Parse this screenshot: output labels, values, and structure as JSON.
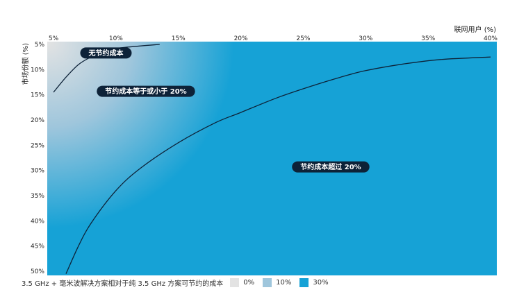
{
  "chart_data": {
    "type": "heatmap",
    "title": "",
    "xlabel": "联网用户 (%)",
    "ylabel": "市场份额 (%)",
    "x_ticks": [
      "5%",
      "10%",
      "15%",
      "20%",
      "25%",
      "30%",
      "35%",
      "40%"
    ],
    "x_values": [
      5,
      10,
      15,
      20,
      25,
      30,
      35,
      40
    ],
    "xlim": [
      5,
      40
    ],
    "y_ticks": [
      "5%",
      "10%",
      "15%",
      "20%",
      "25%",
      "30%",
      "35%",
      "40%",
      "45%",
      "50%"
    ],
    "y_values": [
      5,
      10,
      15,
      20,
      25,
      30,
      35,
      40,
      45,
      50
    ],
    "ylim": [
      5,
      50
    ],
    "x_axis_position": "top",
    "y_axis_inverted": true,
    "grid": false,
    "colors": {
      "low": "#e3e3e3",
      "mid": "#9fc6dc",
      "high": "#16a2d6",
      "label_bg": "#0d2238",
      "curve": "#0d2238"
    },
    "curves": [
      {
        "name": "0%",
        "points": [
          [
            5,
            14.5
          ],
          [
            6,
            11.5
          ],
          [
            7,
            9
          ],
          [
            8,
            7.5
          ],
          [
            9,
            6.5
          ],
          [
            10,
            5.8
          ],
          [
            12,
            5.3
          ],
          [
            13.5,
            5
          ]
        ]
      },
      {
        "name": "20%",
        "points": [
          [
            6,
            50.5
          ],
          [
            7,
            45
          ],
          [
            8,
            40.5
          ],
          [
            10,
            34
          ],
          [
            12,
            29.5
          ],
          [
            15,
            24.5
          ],
          [
            18,
            20.5
          ],
          [
            20,
            18.5
          ],
          [
            23,
            15.5
          ],
          [
            26,
            13
          ],
          [
            28,
            11.5
          ],
          [
            30,
            10.2
          ],
          [
            33,
            8.9
          ],
          [
            36,
            8
          ],
          [
            40,
            7.5
          ]
        ]
      }
    ],
    "region_labels": [
      {
        "text": "无节约成本",
        "x": 9.2,
        "y": 6.7
      },
      {
        "text": "节约成本等于或小于 20%",
        "x": 12.4,
        "y": 14.3
      },
      {
        "text": "节约成本超过 20%",
        "x": 27.2,
        "y": 29.3
      }
    ],
    "legend": {
      "title": "3.5 GHz + 毫米波解决方案相对于纯 3.5 GHz 方案可节约的成本",
      "placement": "bottom-left",
      "entries": [
        {
          "label": "0%",
          "color": "#e3e3e3"
        },
        {
          "label": "10%",
          "color": "#9fc6dc"
        },
        {
          "label": "30%",
          "color": "#16a2d6"
        }
      ]
    }
  }
}
